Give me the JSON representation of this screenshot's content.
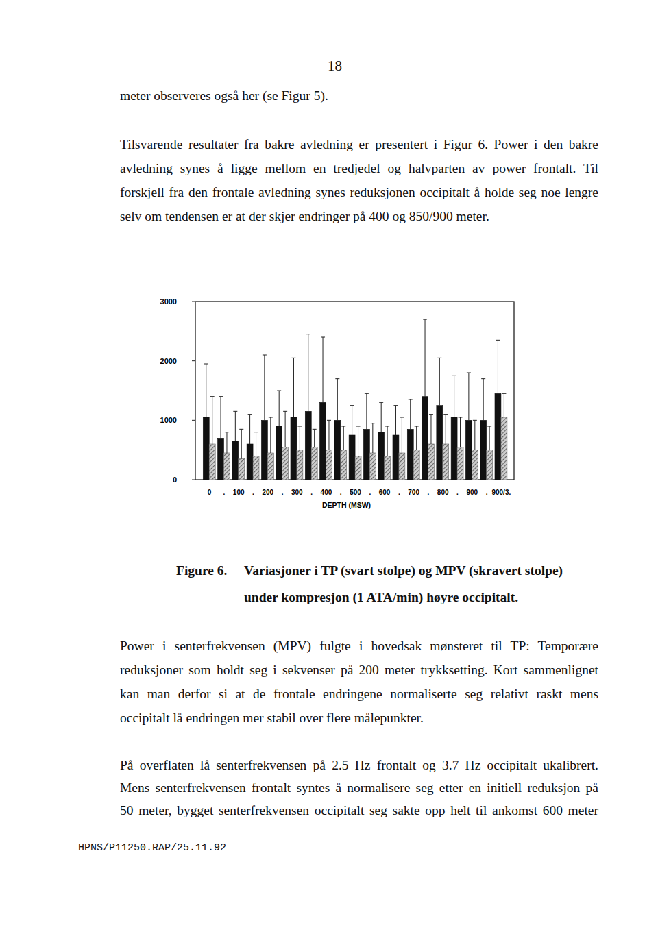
{
  "page_number": "18",
  "paragraphs": [
    {
      "lines": [
        "meter observeres også her (se Figur 5)."
      ]
    },
    {
      "lines": [
        "Tilsvarende resultater fra bakre avledning er presentert i Figur 6. Power i den bakre",
        "avledning synes å ligge mellom en tredjedel og halvparten av power frontalt. Til",
        "forskjell fra den frontale avledning synes reduksjonen occipitalt å holde seg noe lengre",
        "selv om tendensen er at der skjer endringer på 400 og 850/900 meter."
      ]
    },
    {
      "lines": [
        "Power i senterfrekvensen (MPV) fulgte i hovedsak mønsteret til TP: Temporære",
        "reduksjoner som holdt seg i sekvenser på 200 meter trykksetting. Kort sammenlignet",
        "kan man derfor si at de frontale endringene normaliserte seg relativt raskt mens",
        "occipitalt lå endringen mer stabil over flere målepunkter."
      ]
    },
    {
      "lines": [
        "På overflaten lå senterfrekvensen på 2.5 Hz frontalt og 3.7 Hz occipitalt ukalibrert.",
        "Mens senterfrekvensen frontalt syntes å normalisere seg etter en initiell reduksjon på",
        "50 meter, bygget senterfrekvensen occipitalt seg sakte opp helt til ankomst 600 meter"
      ]
    }
  ],
  "chart_data": {
    "type": "bar",
    "x_label": "DEPTH (MSW)",
    "categories": [
      "0",
      ".",
      "100",
      ".",
      "200",
      ".",
      "300",
      ".",
      "400",
      ".",
      "500",
      ".",
      "600",
      ".",
      "700",
      ".",
      "800",
      ".",
      "900",
      ".",
      "900/3."
    ],
    "series": [
      {
        "color": "#111111",
        "values": [
          1050,
          700,
          650,
          600,
          1000,
          900,
          1050,
          1150,
          1300,
          1000,
          750,
          850,
          800,
          750,
          850,
          1400,
          1250,
          1050,
          1000,
          1000,
          1450
        ],
        "errors": [
          900,
          700,
          500,
          500,
          1100,
          600,
          1000,
          1300,
          1100,
          700,
          500,
          600,
          500,
          500,
          500,
          1300,
          800,
          700,
          800,
          700,
          900
        ]
      },
      {
        "color": "#666666",
        "values": [
          600,
          450,
          350,
          400,
          450,
          550,
          500,
          550,
          500,
          500,
          400,
          450,
          400,
          450,
          500,
          600,
          600,
          550,
          500,
          500,
          1050
        ],
        "errors": [
          800,
          350,
          500,
          400,
          600,
          600,
          400,
          300,
          500,
          400,
          500,
          500,
          500,
          600,
          400,
          500,
          500,
          500,
          500,
          400,
          400
        ]
      }
    ],
    "ylim": [
      0,
      3000
    ],
    "yticks": [
      0,
      1000,
      2000,
      3000
    ],
    "grid": false
  },
  "caption": {
    "label": "Figure 6.",
    "lines": [
      "Variasjoner i TP (svart stolpe) og MPV (skravert stolpe)",
      "under kompresjon (1 ATA/min) høyre occipitalt."
    ]
  },
  "footer": "HPNS/P11250.RAP/25.11.92"
}
